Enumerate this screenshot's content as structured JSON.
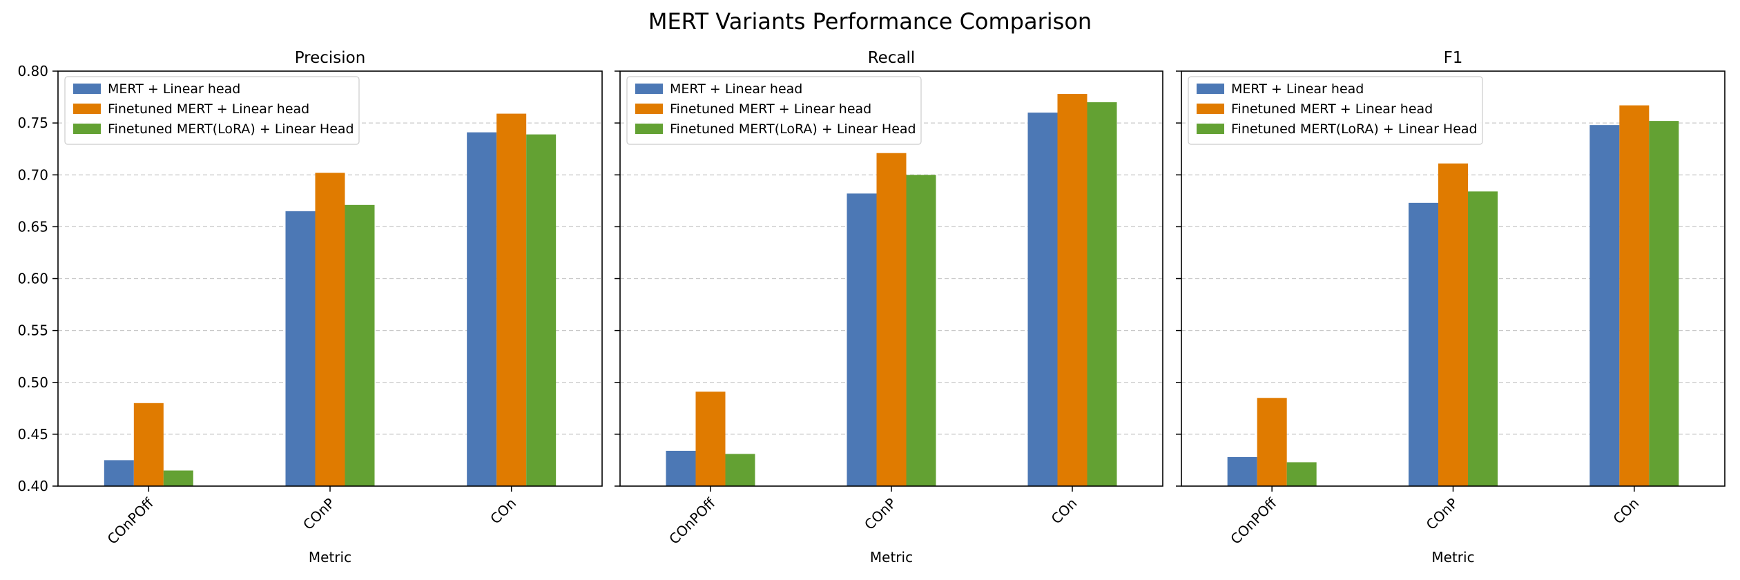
{
  "figure": {
    "title": "MERT Variants Performance Comparison"
  },
  "colors": {
    "series": [
      "#4c78b5",
      "#e07b00",
      "#63a133"
    ],
    "grid": "#c8c8c8",
    "axis": "#000000"
  },
  "chart_data": [
    {
      "type": "bar",
      "title": "Precision",
      "xlabel": "Metric",
      "ylabel": "",
      "ylim": [
        0.4,
        0.8
      ],
      "yticks": [
        "0.40",
        "0.45",
        "0.50",
        "0.55",
        "0.60",
        "0.65",
        "0.70",
        "0.75",
        "0.80"
      ],
      "show_ytick_labels": true,
      "grid": "horizontal dashed",
      "legend": "top-left",
      "categories": [
        "COnPOff",
        "COnP",
        "COn"
      ],
      "series": [
        {
          "name": "MERT + Linear head",
          "values": [
            0.425,
            0.665,
            0.741
          ]
        },
        {
          "name": "Finetuned MERT + Linear head",
          "values": [
            0.48,
            0.702,
            0.759
          ]
        },
        {
          "name": "Finetuned MERT(LoRA) + Linear Head",
          "values": [
            0.415,
            0.671,
            0.739
          ]
        }
      ]
    },
    {
      "type": "bar",
      "title": "Recall",
      "xlabel": "Metric",
      "ylabel": "",
      "ylim": [
        0.4,
        0.8
      ],
      "show_ytick_labels": false,
      "grid": "horizontal dashed",
      "legend": "top-left",
      "categories": [
        "COnPOff",
        "COnP",
        "COn"
      ],
      "series": [
        {
          "name": "MERT + Linear head",
          "values": [
            0.434,
            0.682,
            0.76
          ]
        },
        {
          "name": "Finetuned MERT + Linear head",
          "values": [
            0.491,
            0.721,
            0.778
          ]
        },
        {
          "name": "Finetuned MERT(LoRA) + Linear Head",
          "values": [
            0.431,
            0.7,
            0.77
          ]
        }
      ]
    },
    {
      "type": "bar",
      "title": "F1",
      "xlabel": "Metric",
      "ylabel": "",
      "ylim": [
        0.4,
        0.8
      ],
      "show_ytick_labels": false,
      "grid": "horizontal dashed",
      "legend": "top-left",
      "categories": [
        "COnPOff",
        "COnP",
        "COn"
      ],
      "series": [
        {
          "name": "MERT + Linear head",
          "values": [
            0.428,
            0.673,
            0.748
          ]
        },
        {
          "name": "Finetuned MERT + Linear head",
          "values": [
            0.485,
            0.711,
            0.767
          ]
        },
        {
          "name": "Finetuned MERT(LoRA) + Linear Head",
          "values": [
            0.423,
            0.684,
            0.752
          ]
        }
      ]
    }
  ]
}
